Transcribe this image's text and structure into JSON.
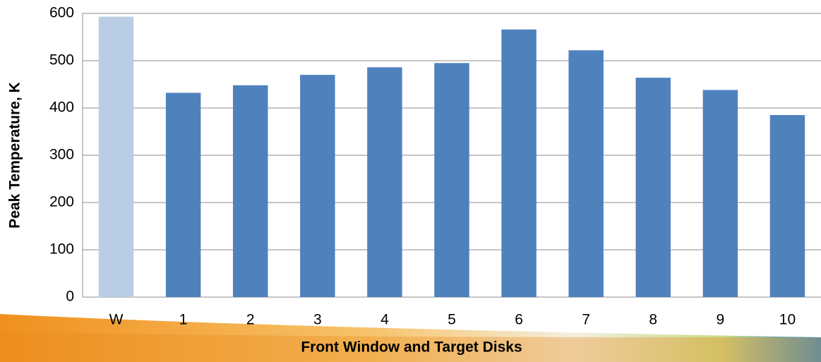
{
  "chart_data": {
    "type": "bar",
    "x_label": "Front Window and Target Disks",
    "y_label": "Peak Temperature, K",
    "categories": [
      "W",
      "1",
      "2",
      "3",
      "4",
      "5",
      "6",
      "7",
      "8",
      "9",
      "10"
    ],
    "values": [
      593,
      432,
      448,
      470,
      486,
      495,
      566,
      522,
      464,
      438,
      385
    ],
    "colors": [
      "#b9cde5",
      "#4f81bd",
      "#4f81bd",
      "#4f81bd",
      "#4f81bd",
      "#4f81bd",
      "#4f81bd",
      "#4f81bd",
      "#4f81bd",
      "#4f81bd",
      "#4f81bd"
    ],
    "ylim": [
      0,
      600
    ],
    "yticks": [
      0,
      100,
      200,
      300,
      400,
      500,
      600
    ],
    "grid": true
  }
}
